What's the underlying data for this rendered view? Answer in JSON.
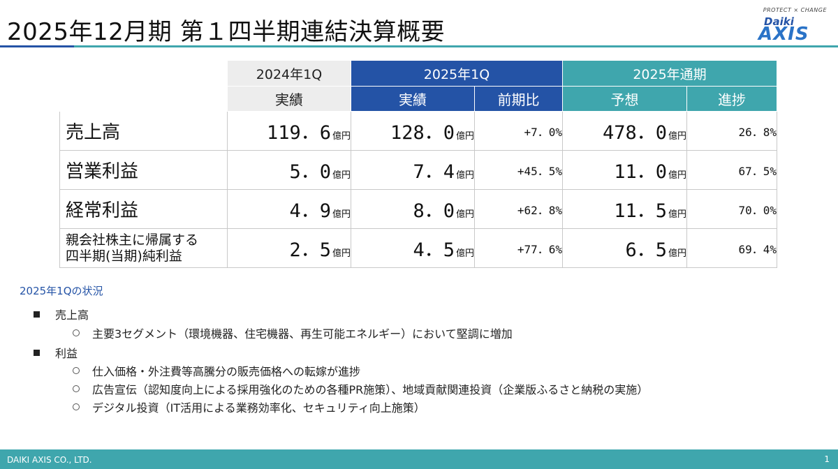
{
  "header": {
    "title": "2025年12月期 第１四半期連結決算概要",
    "logo_tagline": "PROTECT × CHANGE",
    "logo_word1": "Daiki",
    "logo_word2": "AXIS"
  },
  "table": {
    "groups": {
      "prev": "2024年1Q",
      "curr": "2025年1Q",
      "year": "2025年通期"
    },
    "subheaders": {
      "prev_actual": "実績",
      "curr_actual": "実績",
      "curr_yoy": "前期比",
      "year_forecast": "予想",
      "year_progress": "進捗"
    },
    "unit": "億円",
    "rows": [
      {
        "label": "売上高",
        "prev": "119．6",
        "curr": "128．0",
        "yoy": "+7．0%",
        "forecast": "478．0",
        "progress": "26．8%"
      },
      {
        "label": "営業利益",
        "prev": "5．0",
        "curr": "7．4",
        "yoy": "+45．5%",
        "forecast": "11．0",
        "progress": "67．5%"
      },
      {
        "label": "経常利益",
        "prev": "4．9",
        "curr": "8．0",
        "yoy": "+62．8%",
        "forecast": "11．5",
        "progress": "70．0%"
      },
      {
        "label_line1": "親会社株主に帰属する",
        "label_line2": "四半期(当期)純利益",
        "prev": "2．5",
        "curr": "4．5",
        "yoy": "+77．6%",
        "forecast": "6．5",
        "progress": "69．4%"
      }
    ]
  },
  "status": {
    "heading": "2025年1Qの状況",
    "items": [
      {
        "label": "売上高",
        "subs": [
          "主要3セグメント（環境機器、住宅機器、再生可能エネルギー）において堅調に増加"
        ]
      },
      {
        "label": "利益",
        "subs": [
          "仕入価格・外注費等高騰分の販売価格への転嫁が進捗",
          "広告宣伝（認知度向上による採用強化のための各種PR施策）、地域貢献関連投資（企業版ふるさと納税の実施）",
          "デジタル投資（IT活用による業務効率化、セキュリティ向上施策）"
        ]
      }
    ]
  },
  "footer": {
    "company": "DAIKI AXIS CO., LTD.",
    "page": "1"
  },
  "colors": {
    "blue": "#2453a6",
    "teal": "#3fa6ad",
    "gray": "#ededed"
  }
}
